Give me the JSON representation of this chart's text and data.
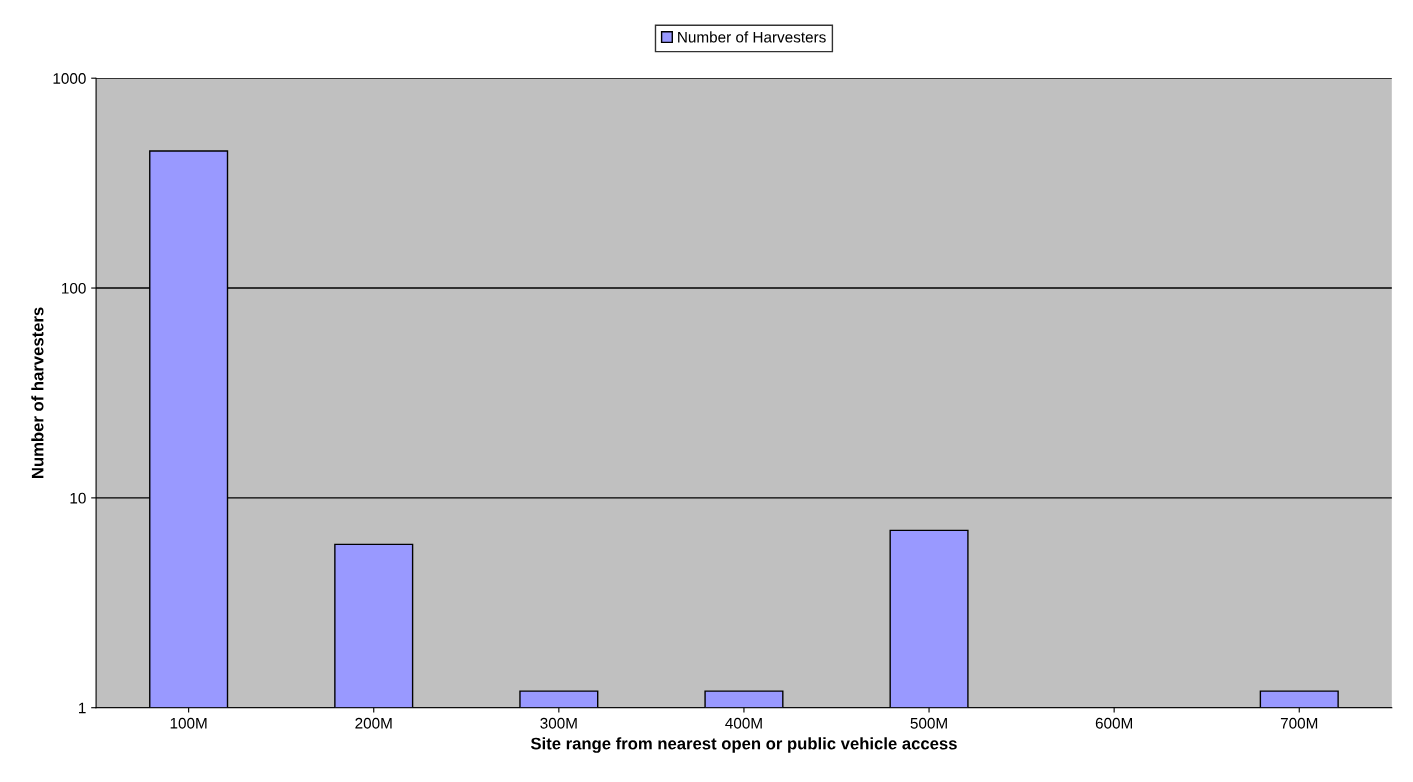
{
  "chart_data": {
    "type": "bar",
    "xlabel": "Site range from nearest open or public vehicle access",
    "ylabel": "Number of harvesters",
    "categories": [
      "100M",
      "200M",
      "300M",
      "400M",
      "500M",
      "600M",
      "700M"
    ],
    "series": [
      {
        "name": "Number of Harvesters",
        "color": "#9999ff",
        "values": [
          450,
          6,
          1.2,
          1.2,
          7,
          null,
          1.2
        ]
      }
    ],
    "log": "y",
    "ylim": [
      1,
      1000
    ],
    "yticks": [
      1,
      10,
      100,
      1000
    ],
    "grid": "y",
    "legend": "top"
  }
}
